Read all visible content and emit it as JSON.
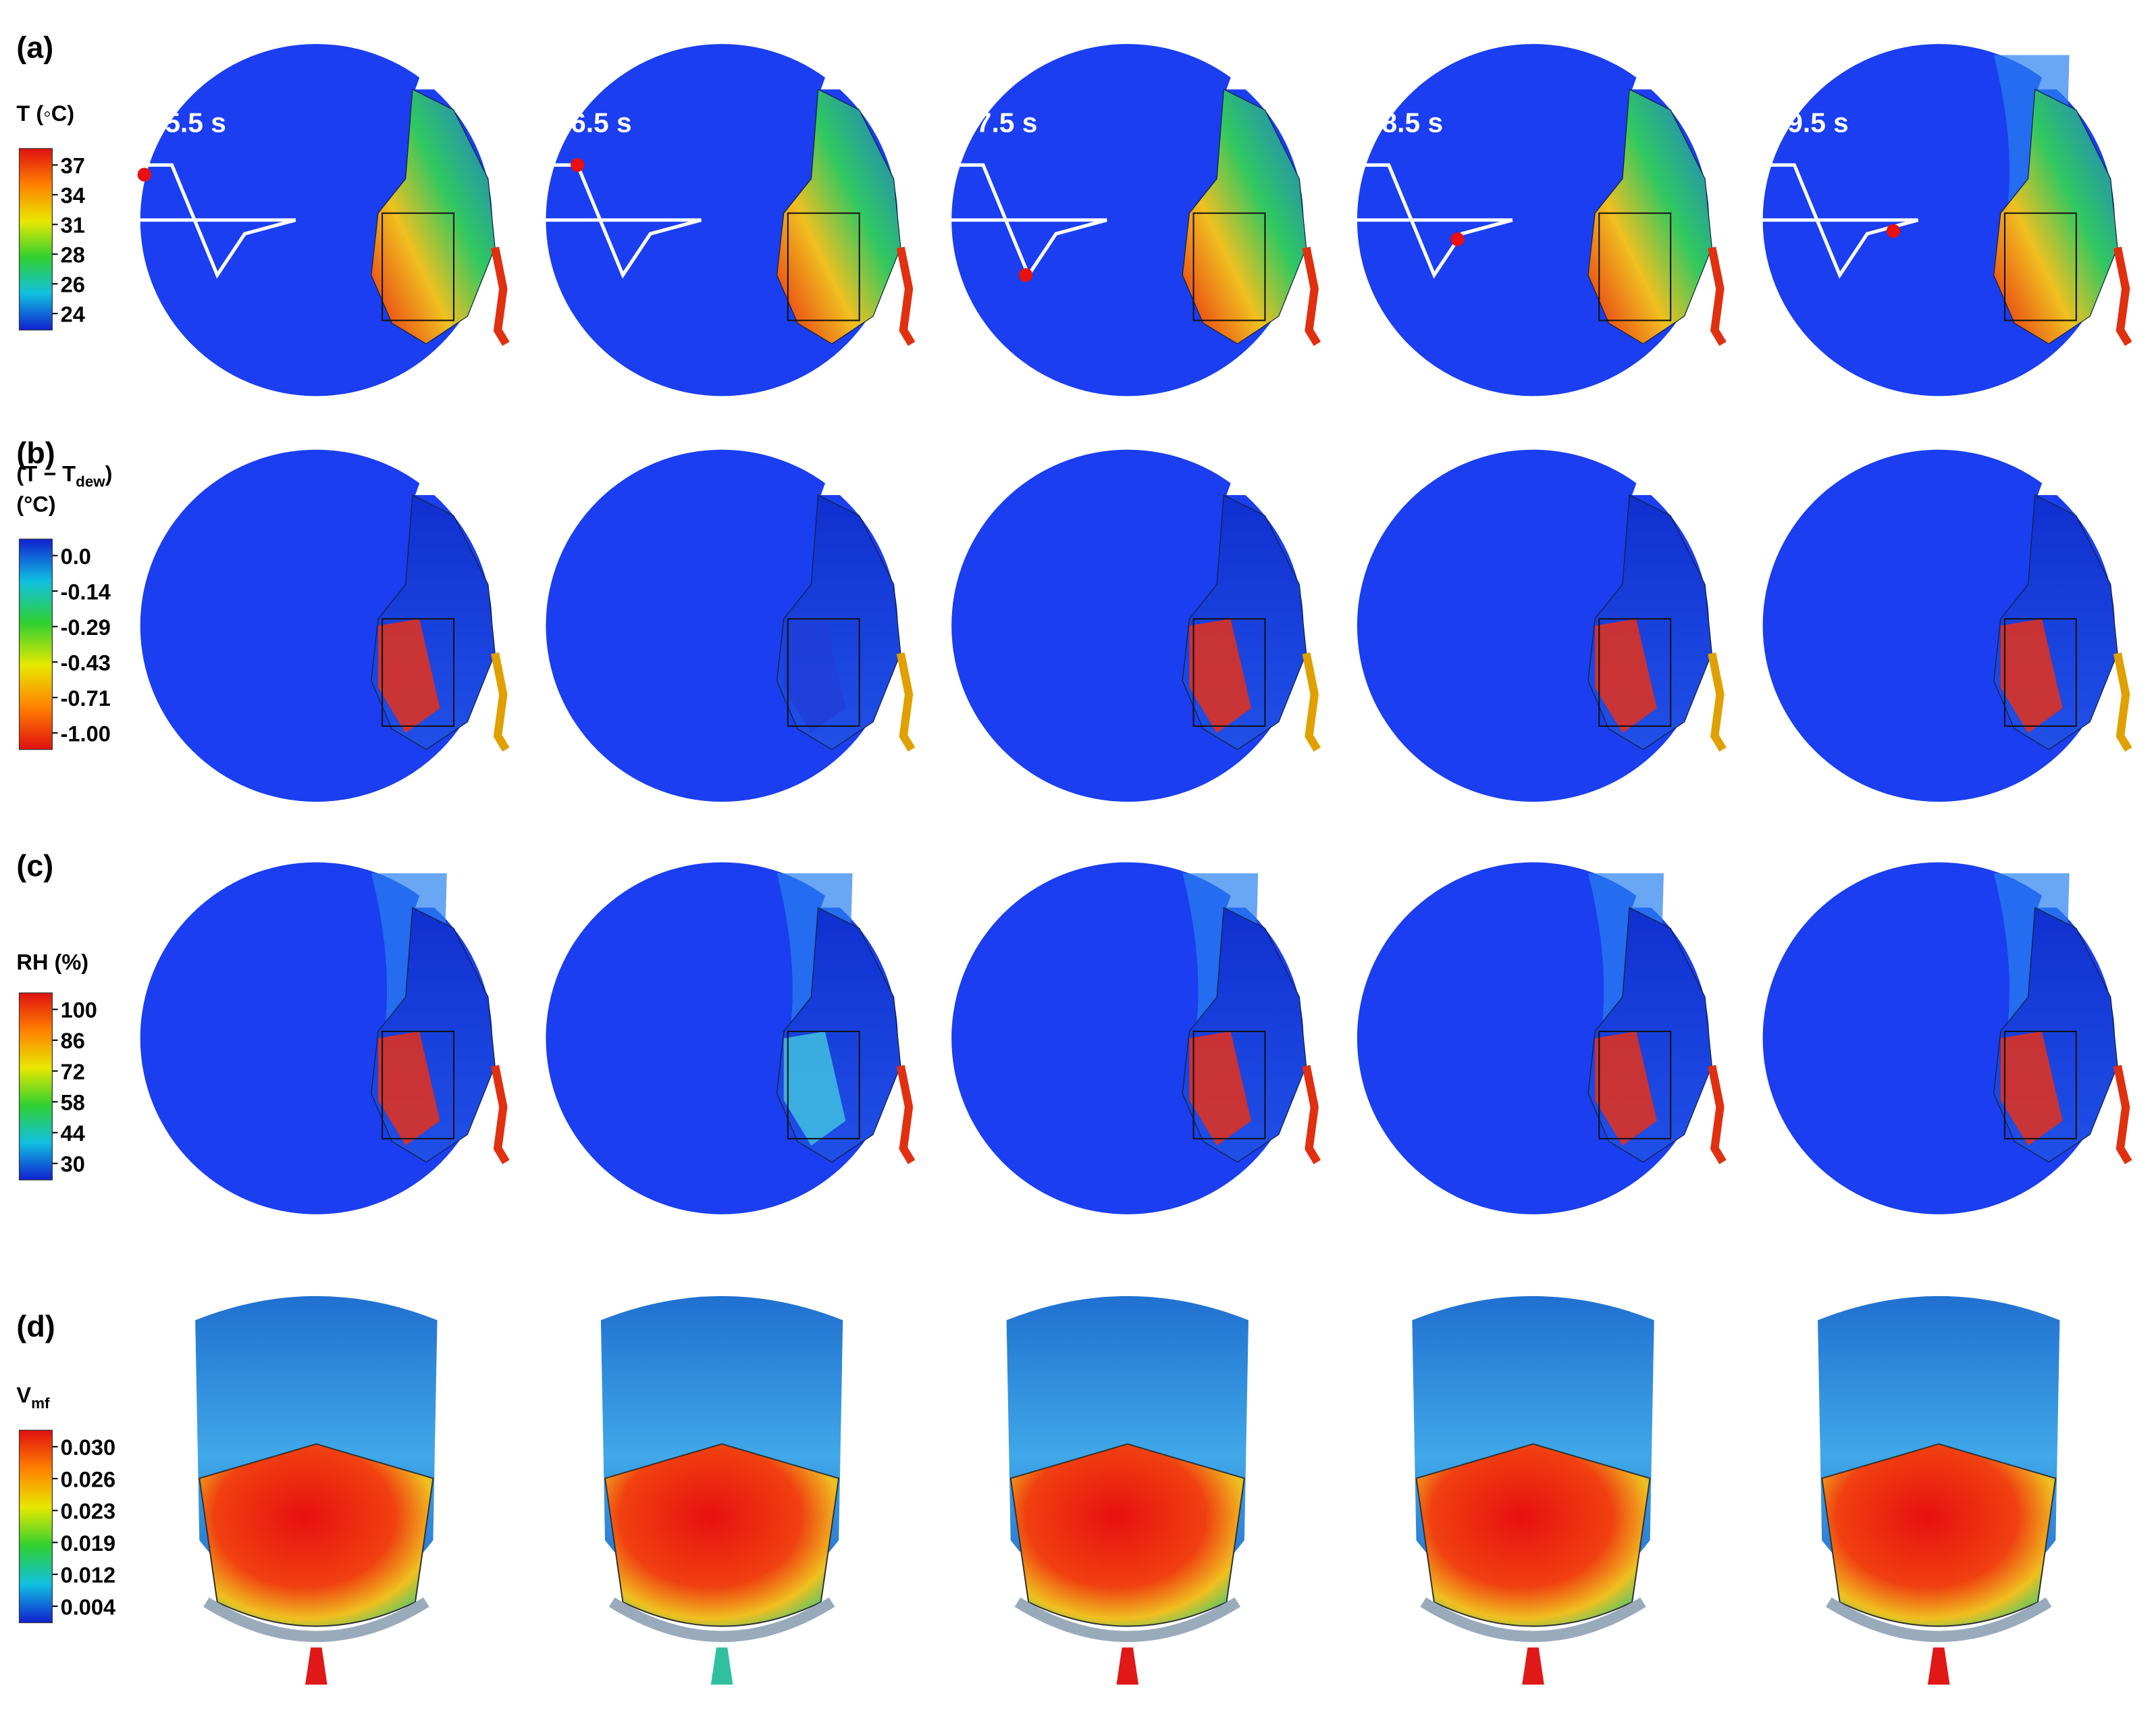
{
  "panels": [
    {
      "label": "(a)",
      "legend": {
        "title": "T (◦C)",
        "ticks": [
          "37",
          "34",
          "31",
          "28",
          "26",
          "24"
        ]
      },
      "times": [
        "5.5 s",
        "6.5 s",
        "7.5 s",
        "8.5 s",
        "9.5 s"
      ]
    },
    {
      "label": "(b)",
      "legend": {
        "title": "(T − T",
        "title_sub": "dew",
        "title_end": ")",
        "title_line2": "(°C)",
        "ticks": [
          "0.0",
          "-0.14",
          "-0.29",
          "-0.43",
          "-0.71",
          "-1.00"
        ]
      }
    },
    {
      "label": "(c)",
      "legend": {
        "title": "RH (%)",
        "ticks": [
          "100",
          "86",
          "72",
          "58",
          "44",
          "30"
        ]
      }
    },
    {
      "label": "(d)",
      "legend": {
        "title": "V",
        "title_sub": "mf",
        "ticks": [
          "0.030",
          "0.026",
          "0.023",
          "0.019",
          "0.012",
          "0.004"
        ]
      }
    }
  ]
}
